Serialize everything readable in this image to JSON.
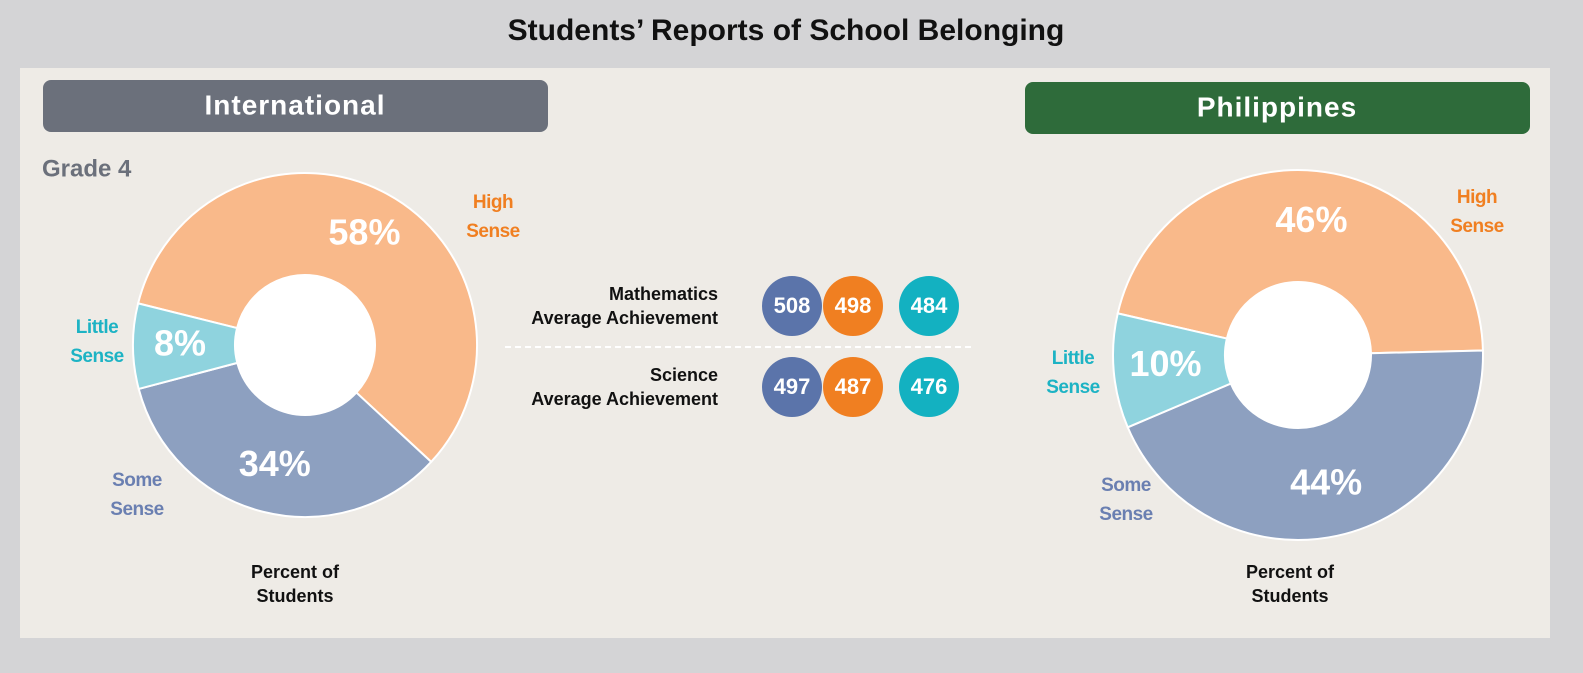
{
  "title": "Students’ Reports of School Belonging",
  "grade": "Grade 4",
  "chart_data": [
    {
      "type": "pie",
      "title": "International",
      "header_color": "#6b707b",
      "categories": [
        "High Sense",
        "Some Sense",
        "Little Sense"
      ],
      "values": [
        58,
        34,
        8
      ],
      "value_labels": [
        "58%",
        "34%",
        "8%"
      ],
      "colors": [
        "#f9b98a",
        "#8da0c0",
        "#8fd3de"
      ],
      "label_colors": [
        "#f07f21",
        "#6a7fb1",
        "#1db3c4"
      ],
      "axis_label": "Percent of Students"
    },
    {
      "type": "pie",
      "title": "Philippines",
      "header_color": "#2e6b3a",
      "categories": [
        "High Sense",
        "Some Sense",
        "Little Sense"
      ],
      "values": [
        46,
        44,
        10
      ],
      "value_labels": [
        "46%",
        "44%",
        "10%"
      ],
      "colors": [
        "#f9b98a",
        "#8da0c0",
        "#8fd3de"
      ],
      "label_colors": [
        "#f07f21",
        "#6a7fb1",
        "#1db3c4"
      ],
      "axis_label": "Percent of Students"
    }
  ],
  "achievement": {
    "colors": [
      "#5b74aa",
      "#f07f21",
      "#13b1c1"
    ],
    "rows": [
      {
        "label": [
          "Mathematics",
          "Average Achievement"
        ],
        "values": [
          508,
          498,
          484
        ]
      },
      {
        "label": [
          "Science",
          "Average Achievement"
        ],
        "values": [
          497,
          487,
          476
        ]
      }
    ]
  }
}
